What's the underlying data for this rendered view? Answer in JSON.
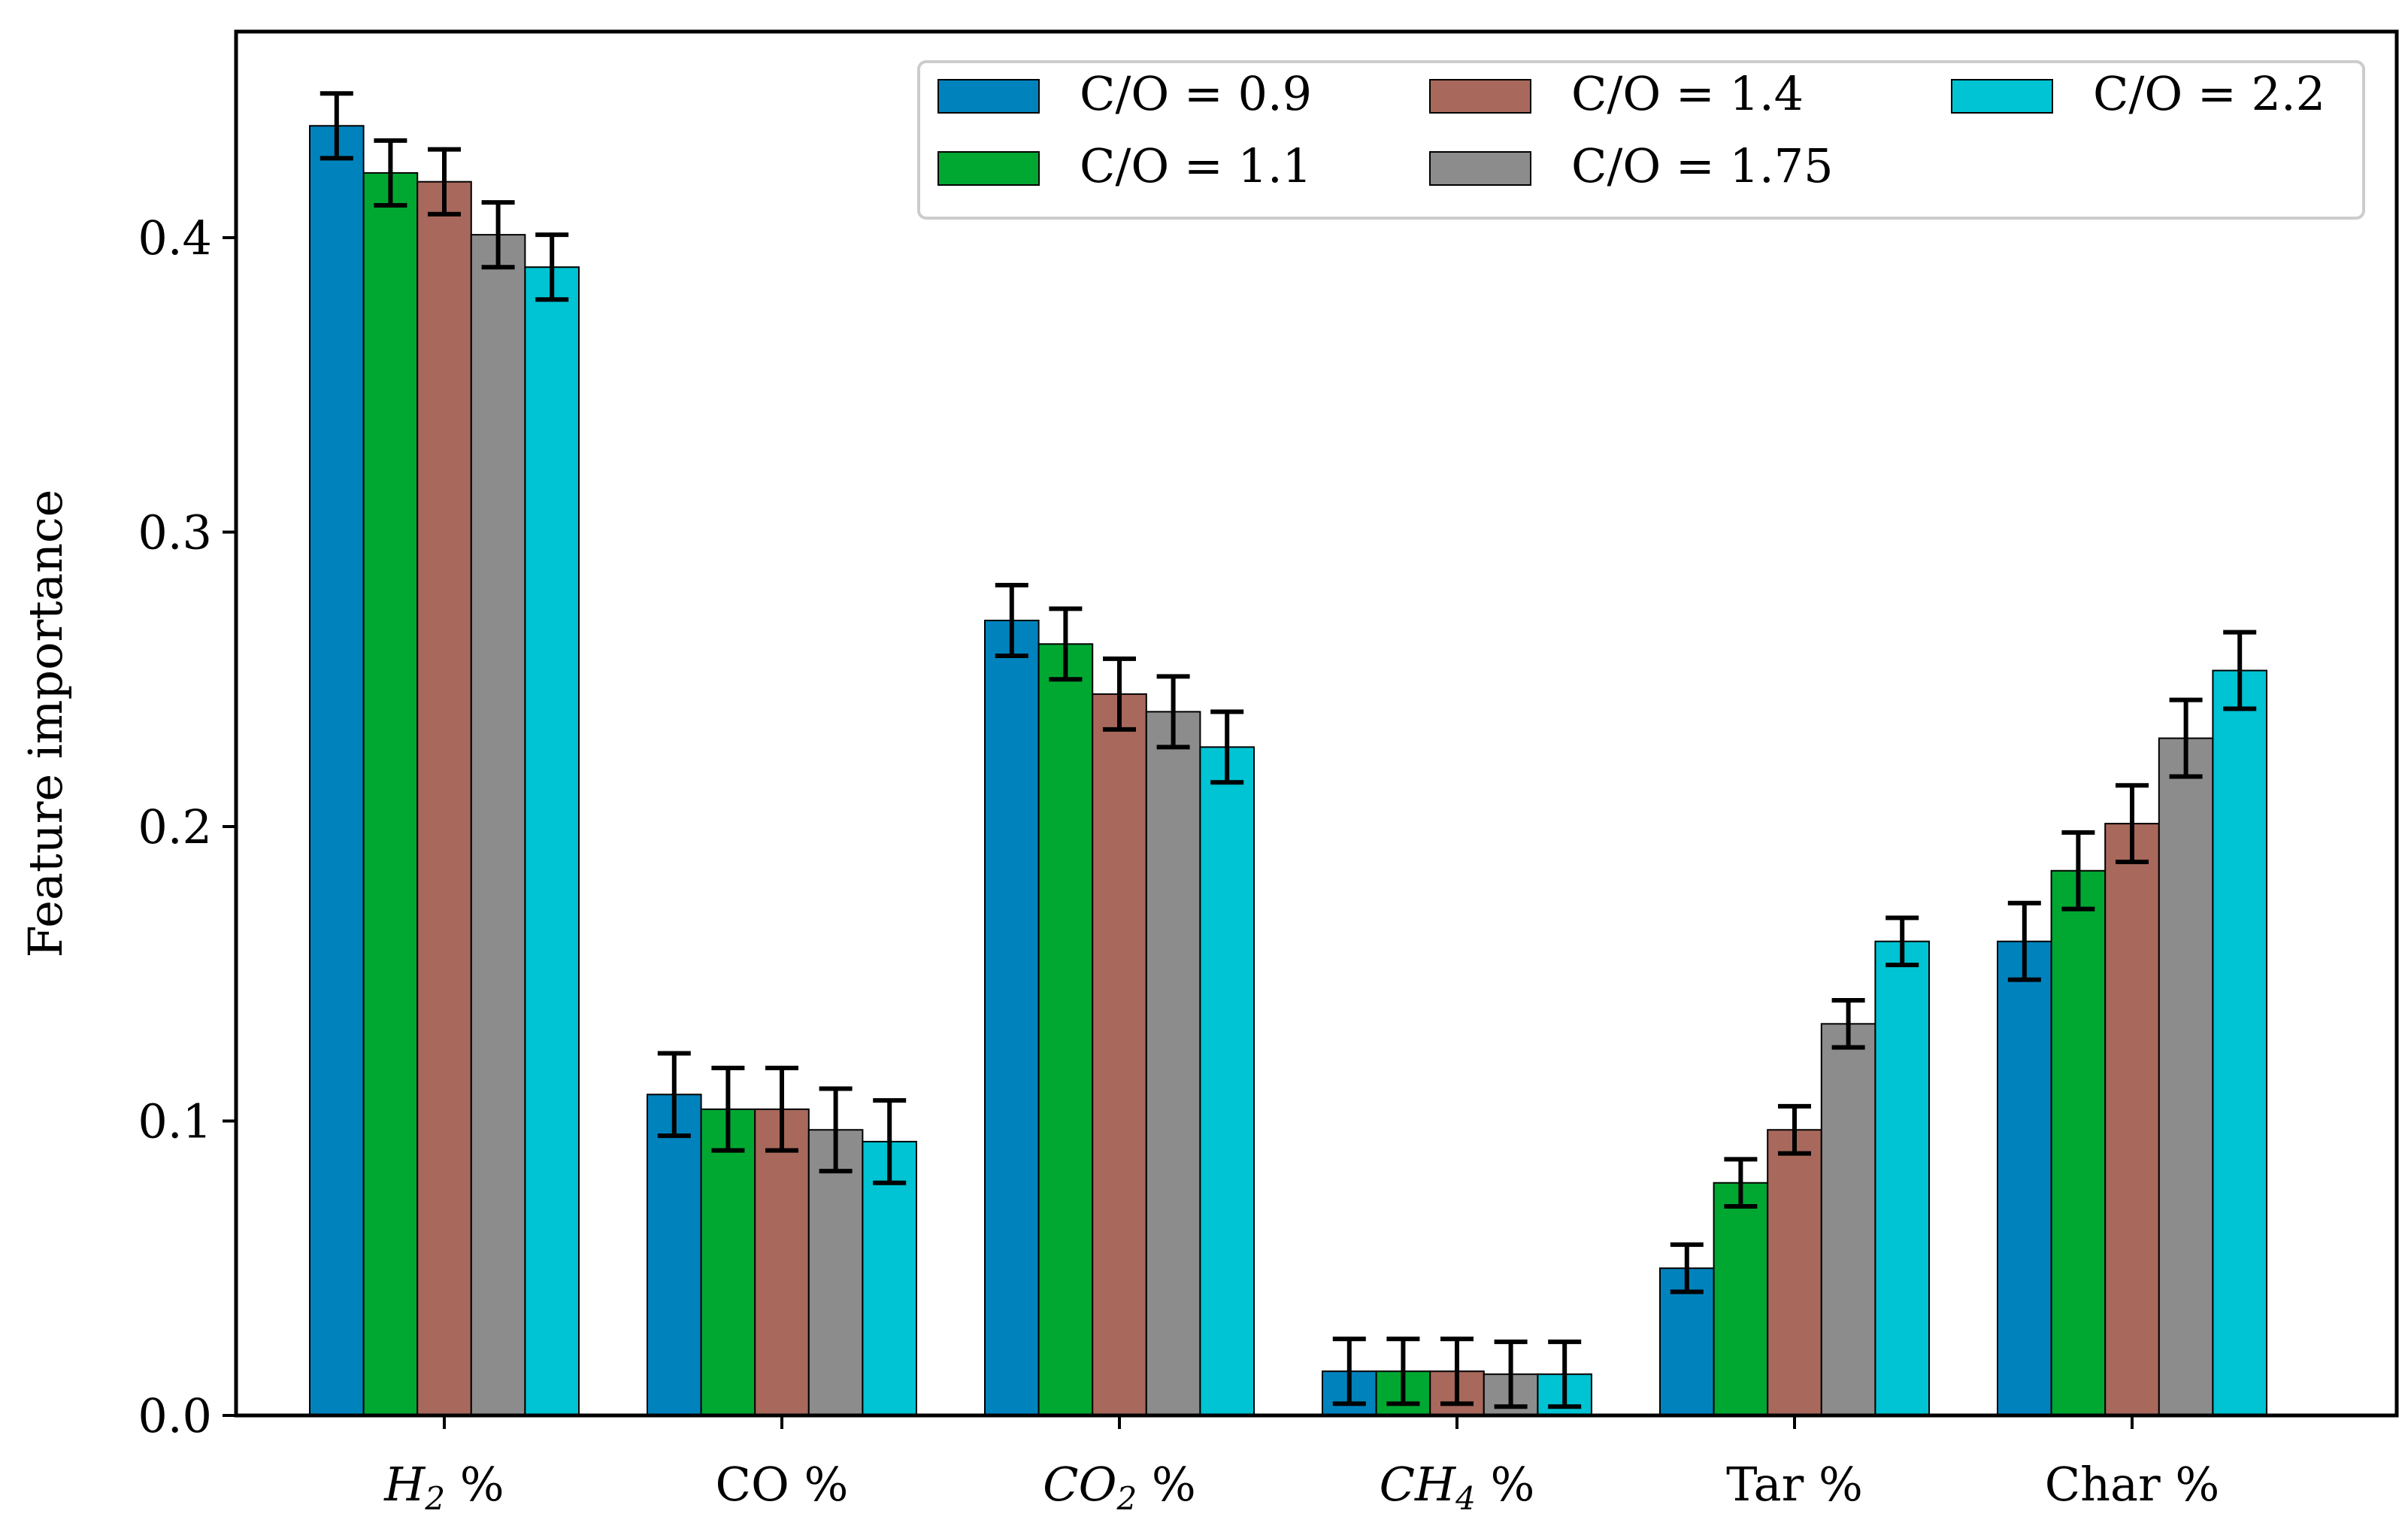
{
  "chart_data": {
    "type": "bar",
    "title": "",
    "xlabel": "",
    "ylabel": "Feature importance",
    "ylim": [
      0,
      0.47
    ],
    "yticks": [
      0.0,
      0.1,
      0.2,
      0.3,
      0.4
    ],
    "ytick_labels": [
      "0.0",
      "0.1",
      "0.2",
      "0.3",
      "0.4"
    ],
    "categories": [
      {
        "main": "H",
        "sub": "2",
        "suffix": " %",
        "italic": true
      },
      {
        "main": "CO",
        "sub": "",
        "suffix": " %",
        "italic": false
      },
      {
        "main": "CO",
        "sub": "2",
        "suffix": " %",
        "italic": true
      },
      {
        "main": "CH",
        "sub": "4",
        "suffix": " %",
        "italic": true
      },
      {
        "main": "Tar",
        "sub": "",
        "suffix": " %",
        "italic": false
      },
      {
        "main": "Char",
        "sub": "",
        "suffix": " %",
        "italic": false
      }
    ],
    "legend_position": "top-right",
    "series": [
      {
        "name": "C/O = 0.9",
        "color": "#0083BD",
        "values": [
          0.438,
          0.109,
          0.27,
          0.015,
          0.05,
          0.161
        ],
        "errors": [
          0.011,
          0.014,
          0.012,
          0.011,
          0.008,
          0.013
        ]
      },
      {
        "name": "C/O = 1.1",
        "color": "#00A832",
        "values": [
          0.422,
          0.104,
          0.262,
          0.015,
          0.079,
          0.185
        ],
        "errors": [
          0.011,
          0.014,
          0.012,
          0.011,
          0.008,
          0.013
        ]
      },
      {
        "name": "C/O = 1.4",
        "color": "#A8685C",
        "values": [
          0.419,
          0.104,
          0.245,
          0.015,
          0.097,
          0.201
        ],
        "errors": [
          0.011,
          0.014,
          0.012,
          0.011,
          0.008,
          0.013
        ]
      },
      {
        "name": "C/O = 1.75",
        "color": "#8C8C8C",
        "values": [
          0.401,
          0.097,
          0.239,
          0.014,
          0.133,
          0.23
        ],
        "errors": [
          0.011,
          0.014,
          0.012,
          0.011,
          0.008,
          0.013
        ]
      },
      {
        "name": "C/O = 2.2",
        "color": "#00C3D3",
        "values": [
          0.39,
          0.093,
          0.227,
          0.014,
          0.161,
          0.253
        ],
        "errors": [
          0.011,
          0.014,
          0.012,
          0.011,
          0.008,
          0.013
        ]
      }
    ]
  }
}
